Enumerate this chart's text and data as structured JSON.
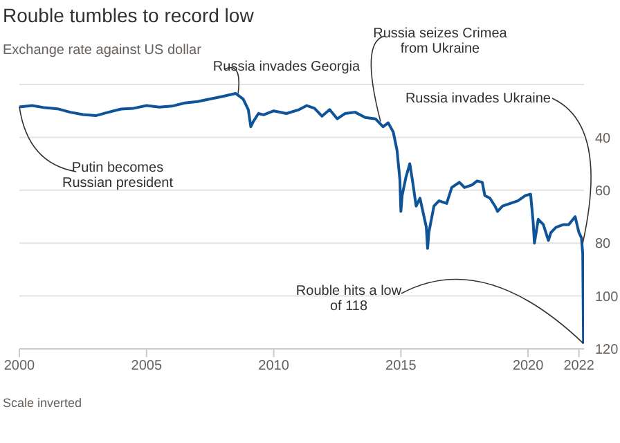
{
  "chart_data": {
    "type": "line",
    "title": "Rouble tumbles to record low",
    "subtitle": "Exchange rate against US dollar",
    "x": [
      2000,
      2000.5,
      2001,
      2001.5,
      2002,
      2002.5,
      2003,
      2003.5,
      2004,
      2004.5,
      2005,
      2005.5,
      2006,
      2006.5,
      2007,
      2007.5,
      2008,
      2008.5,
      2008.8,
      2009,
      2009.1,
      2009.2,
      2009.4,
      2009.6,
      2010,
      2010.5,
      2011,
      2011.3,
      2011.6,
      2011.9,
      2012.2,
      2012.5,
      2012.8,
      2013.2,
      2013.6,
      2014,
      2014.3,
      2014.5,
      2014.7,
      2014.85,
      2014.96,
      2015,
      2015.05,
      2015.2,
      2015.35,
      2015.45,
      2015.6,
      2015.75,
      2016,
      2016.05,
      2016.1,
      2016.3,
      2016.5,
      2016.8,
      2017,
      2017.3,
      2017.5,
      2017.8,
      2018,
      2018.2,
      2018.3,
      2018.5,
      2018.7,
      2018.8,
      2019,
      2019.3,
      2019.6,
      2019.9,
      2020.1,
      2020.2,
      2020.25,
      2020.4,
      2020.6,
      2020.8,
      2020.9,
      2021.1,
      2021.4,
      2021.6,
      2021.85,
      2022,
      2022.1,
      2022.15,
      2022.18
    ],
    "series": [
      {
        "color": "#0f5499",
        "values": [
          28.5,
          28,
          28.8,
          29.2,
          30.5,
          31.4,
          31.8,
          30.5,
          29.3,
          29,
          28,
          28.6,
          28.2,
          27,
          26.5,
          25.5,
          24.5,
          23.4,
          25.5,
          29.5,
          36,
          34,
          31,
          31.5,
          30,
          31,
          29.5,
          28,
          29,
          32,
          29.5,
          33,
          31,
          30.5,
          32.5,
          33,
          36,
          34.5,
          38,
          45,
          56,
          68,
          62,
          55,
          50,
          56,
          66,
          63,
          74,
          82,
          76,
          66,
          64,
          65,
          59,
          57,
          59,
          58,
          56.5,
          57,
          62,
          63,
          66,
          68,
          66,
          65,
          64,
          62,
          61.5,
          72,
          80,
          71,
          73,
          79,
          76,
          74,
          73,
          73,
          70,
          76,
          78,
          84,
          118
        ]
      }
    ],
    "xlim": [
      2000,
      2022.2
    ],
    "xticks": [
      2000,
      2005,
      2010,
      2015,
      2020,
      2022
    ],
    "ylim": [
      120,
      20
    ],
    "yticks": [
      40,
      60,
      80,
      100,
      120
    ],
    "grid": "y",
    "annotations": [
      {
        "text": "Putin becomes\nRussian president",
        "x": 2000,
        "y": 28.5
      },
      {
        "text": "Russia invades Georgia",
        "x": 2008.6,
        "y": 23.4
      },
      {
        "text": "Russia seizes Crimea\nfrom Ukraine",
        "x": 2014.2,
        "y": 34
      },
      {
        "text": "Russia invades Ukraine",
        "x": 2022.15,
        "y": 80
      },
      {
        "text": "Rouble hits a low\nof 118",
        "x": 2022.18,
        "y": 118
      },
      "Scale inverted"
    ]
  }
}
